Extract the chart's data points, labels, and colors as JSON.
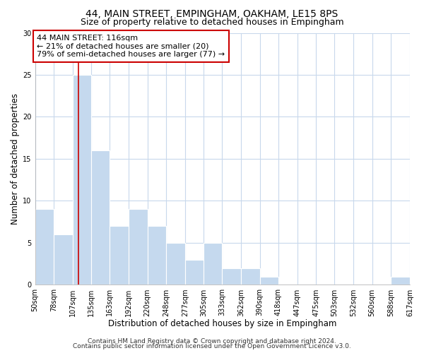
{
  "title": "44, MAIN STREET, EMPINGHAM, OAKHAM, LE15 8PS",
  "subtitle": "Size of property relative to detached houses in Empingham",
  "xlabel": "Distribution of detached houses by size in Empingham",
  "ylabel": "Number of detached properties",
  "bar_color": "#c5d9ee",
  "grid_color": "#c8d8ec",
  "vline_color": "#cc0000",
  "vline_x": 116,
  "annotation_text": "44 MAIN STREET: 116sqm\n← 21% of detached houses are smaller (20)\n79% of semi-detached houses are larger (77) →",
  "annotation_box_color": "#ffffff",
  "annotation_box_edge": "#cc0000",
  "bins": [
    50,
    78,
    107,
    135,
    163,
    192,
    220,
    248,
    277,
    305,
    333,
    362,
    390,
    418,
    447,
    475,
    503,
    532,
    560,
    588,
    617
  ],
  "counts": [
    9,
    6,
    25,
    16,
    7,
    9,
    7,
    5,
    3,
    5,
    2,
    2,
    1,
    0,
    0,
    0,
    0,
    0,
    0,
    1
  ],
  "tick_labels": [
    "50sqm",
    "78sqm",
    "107sqm",
    "135sqm",
    "163sqm",
    "192sqm",
    "220sqm",
    "248sqm",
    "277sqm",
    "305sqm",
    "333sqm",
    "362sqm",
    "390sqm",
    "418sqm",
    "447sqm",
    "475sqm",
    "503sqm",
    "532sqm",
    "560sqm",
    "588sqm",
    "617sqm"
  ],
  "ylim": [
    0,
    30
  ],
  "yticks": [
    0,
    5,
    10,
    15,
    20,
    25,
    30
  ],
  "footer1": "Contains HM Land Registry data © Crown copyright and database right 2024.",
  "footer2": "Contains public sector information licensed under the Open Government Licence v3.0.",
  "title_fontsize": 10,
  "subtitle_fontsize": 9,
  "axis_label_fontsize": 8.5,
  "tick_fontsize": 7,
  "annotation_fontsize": 8,
  "footer_fontsize": 6.5
}
